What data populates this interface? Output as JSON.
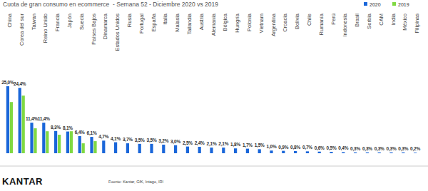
{
  "chart_data": {
    "type": "bar",
    "title": "Cuota de gran consumo en ecommerce  - Semana 52 - Diciembre 2020 vs 2019",
    "categories": [
      "China",
      "Corea del sur",
      "Taiwan",
      "Reino Unido",
      "Francia",
      "Japón",
      "Suecia",
      "Países Bajos",
      "Dinamarca",
      "Estados Unidos",
      "Rusia",
      "Portugal",
      "España",
      "Italia",
      "Malasia",
      "Tailandia",
      "Austria",
      "Alemania",
      "Bélgica",
      "Hungría",
      "Polonia",
      "Vietnam",
      "Argentina",
      "Croacia",
      "Bolivia",
      "Chile",
      "Rumanía",
      "Perú",
      "Indonesia",
      "Brasil",
      "Serbia",
      "CAM",
      "India",
      "México",
      "Filipinas"
    ],
    "series": [
      {
        "name": "2020",
        "color": "#1a66d9",
        "values": [
          25.0,
          24.4,
          11.4,
          11.4,
          8.3,
          8.1,
          6.4,
          6.1,
          4.7,
          4.1,
          3.7,
          3.5,
          3.5,
          3.2,
          3.0,
          2.5,
          2.4,
          2.1,
          2.1,
          1.8,
          1.7,
          1.5,
          1.0,
          0.9,
          0.8,
          0.7,
          0.6,
          0.5,
          0.4,
          0.3,
          0.3,
          0.3,
          0.3,
          0.3,
          0.2
        ],
        "value_labels": [
          "25,0%",
          "24,4%",
          "11,4%",
          "11,4%",
          "8,3%",
          "8,1%",
          "6,4%",
          "6,1%",
          "4,7%",
          "4,1%",
          "3,7%",
          "3,5%",
          "3,5%",
          "3,2%",
          "3,0%",
          "2,5%",
          "2,4%",
          "2,1%",
          "2,1%",
          "1,8%",
          "1,7%",
          "1,5%",
          "1,0%",
          "0,9%",
          "0,8%",
          "0,7%",
          "0,6%",
          "0,5%",
          "0,4%",
          "0,3%",
          "0,3%",
          "0,3%",
          "0,3%",
          "0,3%",
          "0,2%"
        ]
      },
      {
        "name": "2019",
        "color": "#80d942",
        "values": [
          19.1,
          21.5,
          9.3,
          8.2,
          6.9,
          8.2,
          3.7,
          4.5,
          null,
          null,
          null,
          null,
          null,
          null,
          null,
          null,
          null,
          null,
          null,
          null,
          null,
          null,
          null,
          null,
          null,
          null,
          null,
          null,
          null,
          null,
          null,
          null,
          null,
          null,
          null
        ]
      }
    ],
    "ylim": [
      0,
      25
    ],
    "tick_labels": false,
    "grid": false,
    "data_labels": true,
    "legend": "top-right",
    "brand": "KANTAR",
    "source": "Fuente: Kantar, GfK, Intage, IRI"
  }
}
